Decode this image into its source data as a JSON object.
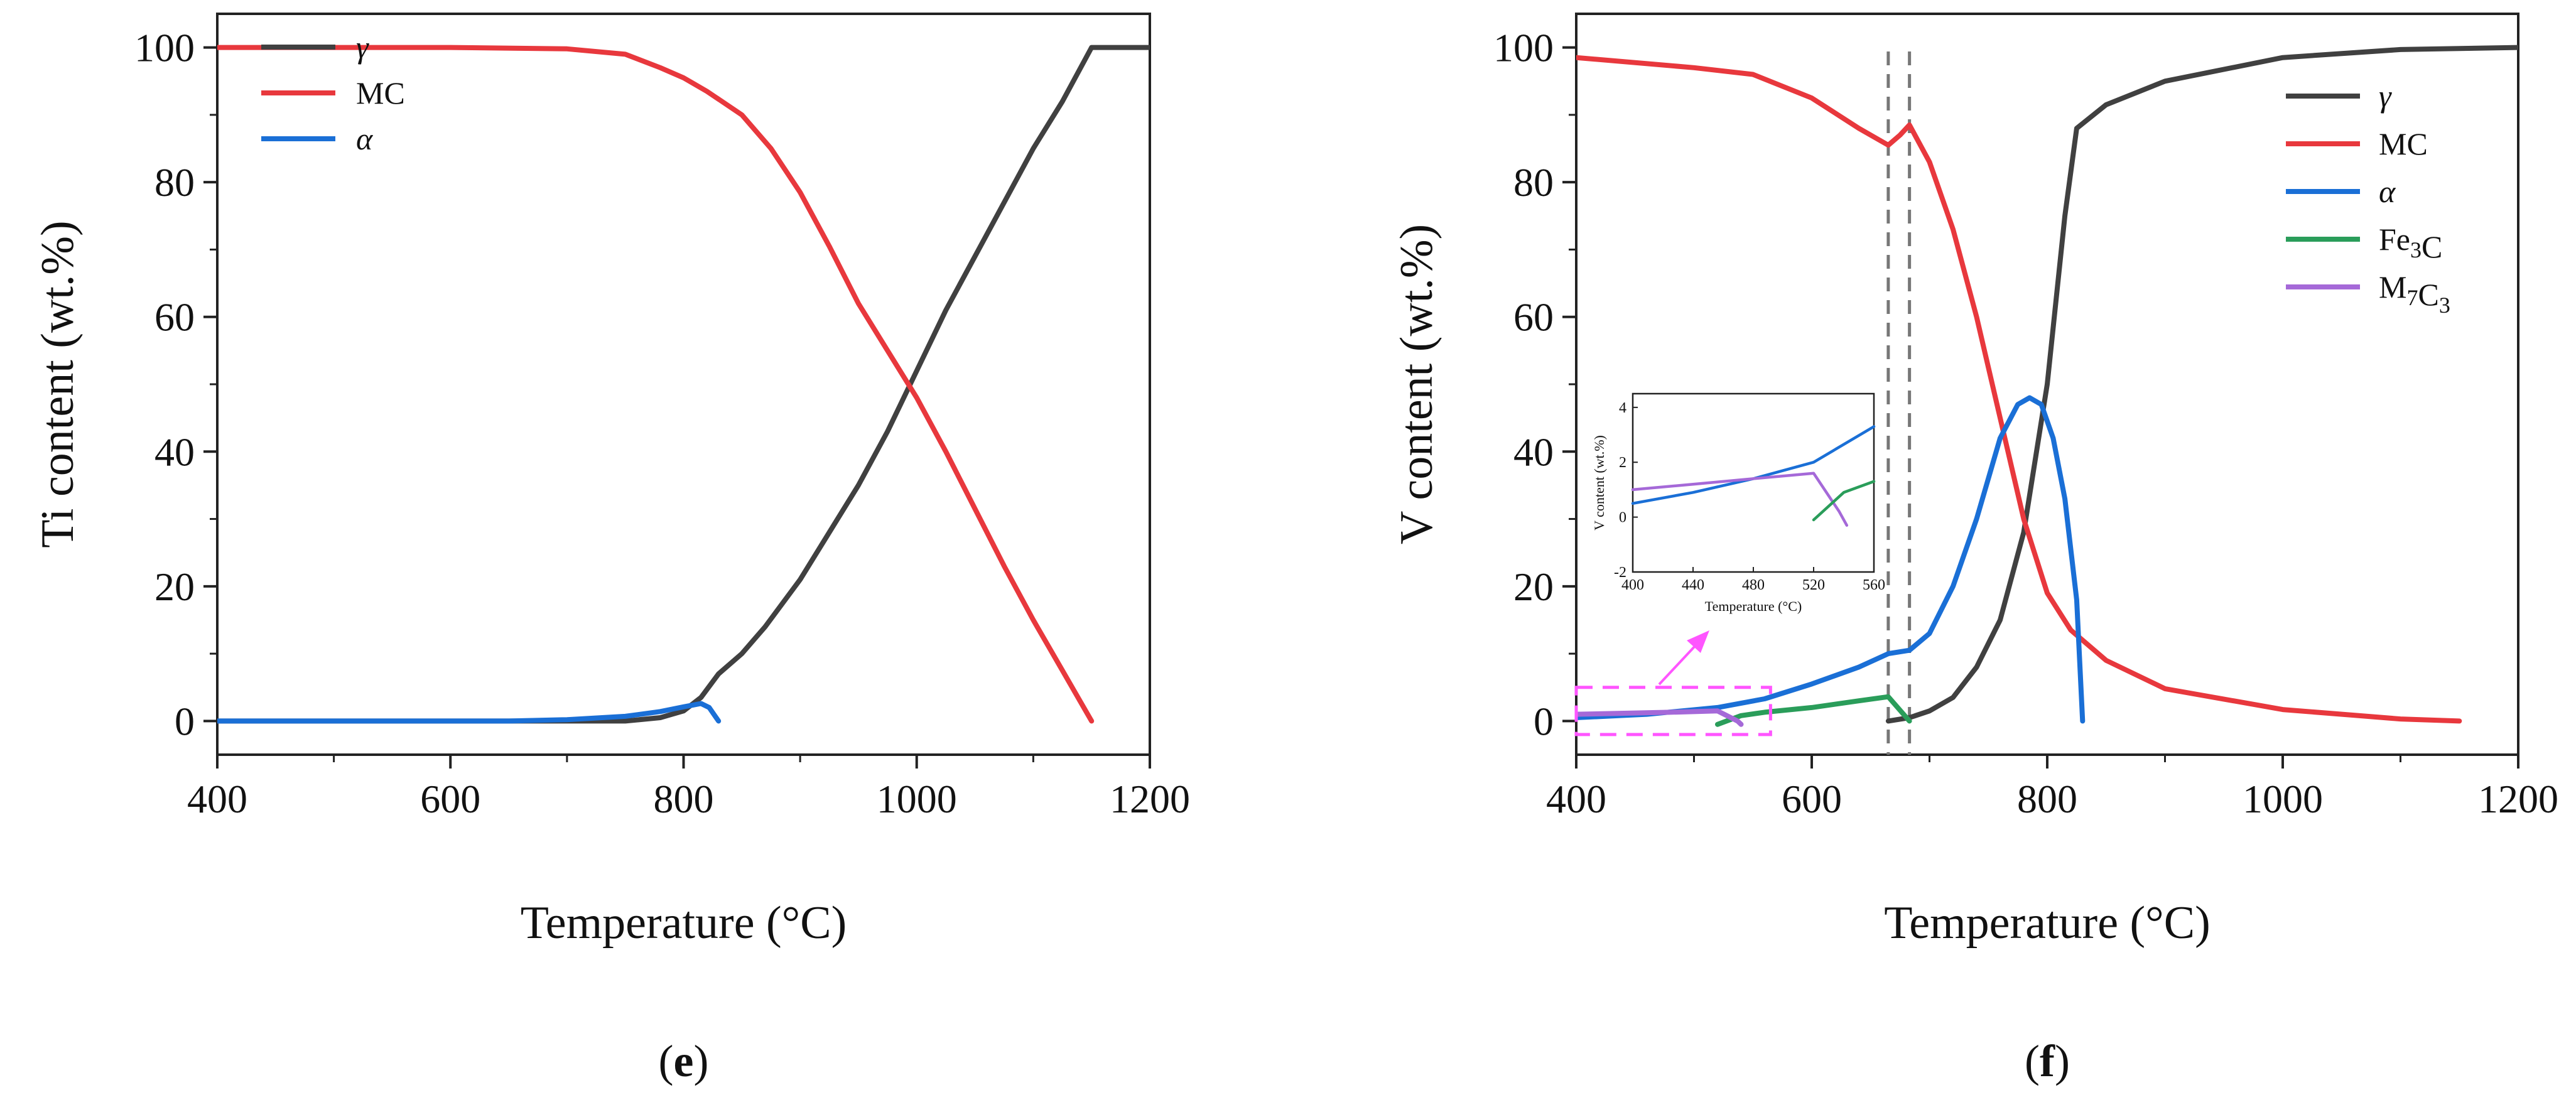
{
  "chart_data": [
    {
      "panel": "(e)",
      "panel_letter": "e",
      "type": "line",
      "xlabel": "Temperature (°C)",
      "ylabel": "Ti content (wt.%)",
      "xlim": [
        400,
        1200
      ],
      "ylim": [
        -5,
        105
      ],
      "xticks": [
        400,
        600,
        800,
        1000,
        1200
      ],
      "yticks": [
        0,
        20,
        40,
        60,
        80,
        100
      ],
      "legend_position": "top-left",
      "series": [
        {
          "name": "γ",
          "label_italic": true,
          "color": "#404040",
          "points": [
            [
              400,
              0
            ],
            [
              600,
              0
            ],
            [
              700,
              0
            ],
            [
              750,
              0
            ],
            [
              780,
              0.5
            ],
            [
              800,
              1.5
            ],
            [
              815,
              3.5
            ],
            [
              830,
              7
            ],
            [
              850,
              10
            ],
            [
              870,
              14
            ],
            [
              900,
              21
            ],
            [
              925,
              28
            ],
            [
              950,
              35
            ],
            [
              975,
              43
            ],
            [
              1000,
              52
            ],
            [
              1025,
              61
            ],
            [
              1050,
              69
            ],
            [
              1075,
              77
            ],
            [
              1100,
              85
            ],
            [
              1125,
              92
            ],
            [
              1150,
              100
            ],
            [
              1200,
              100
            ]
          ]
        },
        {
          "name": "MC",
          "label_italic": false,
          "color": "#e8383d",
          "points": [
            [
              400,
              100
            ],
            [
              600,
              100
            ],
            [
              700,
              99.8
            ],
            [
              750,
              99
            ],
            [
              780,
              97
            ],
            [
              800,
              95.5
            ],
            [
              820,
              93.5
            ],
            [
              850,
              90
            ],
            [
              875,
              85
            ],
            [
              900,
              78.5
            ],
            [
              925,
              70.5
            ],
            [
              950,
              62
            ],
            [
              975,
              55
            ],
            [
              1000,
              48
            ],
            [
              1025,
              40
            ],
            [
              1050,
              31.5
            ],
            [
              1075,
              23
            ],
            [
              1100,
              15
            ],
            [
              1125,
              7.5
            ],
            [
              1150,
              0
            ]
          ]
        },
        {
          "name": "α",
          "label_italic": true,
          "color": "#1a6fd6",
          "points": [
            [
              400,
              0
            ],
            [
              650,
              0
            ],
            [
              700,
              0.2
            ],
            [
              750,
              0.7
            ],
            [
              780,
              1.4
            ],
            [
              800,
              2.1
            ],
            [
              815,
              2.6
            ],
            [
              822,
              2
            ],
            [
              830,
              0
            ]
          ]
        }
      ]
    },
    {
      "panel": "(f)",
      "panel_letter": "f",
      "type": "line",
      "xlabel": "Temperature (°C)",
      "ylabel": "V content (wt.%)",
      "xlim": [
        400,
        1200
      ],
      "ylim": [
        -5,
        105
      ],
      "xticks": [
        400,
        600,
        800,
        1000,
        1200
      ],
      "yticks": [
        0,
        20,
        40,
        60,
        80,
        100
      ],
      "legend_position": "top-right",
      "vertical_reference_lines": [
        665,
        683
      ],
      "highlight_box": {
        "x": [
          400,
          565
        ],
        "y": [
          -2,
          5
        ]
      },
      "series": [
        {
          "name": "γ",
          "label_italic": true,
          "color": "#404040",
          "points": [
            [
              665,
              0
            ],
            [
              683,
              0.5
            ],
            [
              700,
              1.5
            ],
            [
              720,
              3.5
            ],
            [
              740,
              8
            ],
            [
              760,
              15
            ],
            [
              780,
              28
            ],
            [
              800,
              50
            ],
            [
              815,
              75
            ],
            [
              825,
              88
            ],
            [
              850,
              91.5
            ],
            [
              900,
              95
            ],
            [
              1000,
              98.5
            ],
            [
              1100,
              99.7
            ],
            [
              1200,
              100
            ]
          ]
        },
        {
          "name": "MC",
          "label_italic": false,
          "color": "#e8383d",
          "points": [
            [
              400,
              98.5
            ],
            [
              500,
              97
            ],
            [
              550,
              96
            ],
            [
              600,
              92.5
            ],
            [
              640,
              88
            ],
            [
              665,
              85.5
            ],
            [
              675,
              87
            ],
            [
              683,
              88.5
            ],
            [
              700,
              83
            ],
            [
              720,
              73
            ],
            [
              740,
              60
            ],
            [
              760,
              45
            ],
            [
              780,
              30
            ],
            [
              800,
              19
            ],
            [
              820,
              13.5
            ],
            [
              850,
              9
            ],
            [
              900,
              4.8
            ],
            [
              1000,
              1.7
            ],
            [
              1100,
              0.3
            ],
            [
              1150,
              0
            ]
          ]
        },
        {
          "name": "α",
          "label_italic": true,
          "color": "#1a6fd6",
          "points": [
            [
              400,
              0.5
            ],
            [
              460,
              1
            ],
            [
              520,
              2
            ],
            [
              560,
              3.3
            ],
            [
              600,
              5.5
            ],
            [
              640,
              8
            ],
            [
              665,
              10
            ],
            [
              683,
              10.5
            ],
            [
              700,
              13
            ],
            [
              720,
              20
            ],
            [
              740,
              30
            ],
            [
              760,
              42
            ],
            [
              775,
              47
            ],
            [
              785,
              48
            ],
            [
              795,
              47
            ],
            [
              805,
              42
            ],
            [
              815,
              33
            ],
            [
              825,
              18
            ],
            [
              830,
              0
            ]
          ]
        },
        {
          "name": "Fe3C",
          "label_italic": false,
          "color": "#2a9d5a",
          "points": [
            [
              520,
              -0.5
            ],
            [
              540,
              0.8
            ],
            [
              560,
              1.3
            ],
            [
              600,
              2
            ],
            [
              640,
              3
            ],
            [
              665,
              3.6
            ],
            [
              683,
              0
            ]
          ]
        },
        {
          "name": "M7C3",
          "label_italic": false,
          "color": "#a569d8",
          "points": [
            [
              400,
              1
            ],
            [
              480,
              1.3
            ],
            [
              520,
              1.5
            ],
            [
              537,
              0
            ],
            [
              540,
              -0.5
            ]
          ]
        }
      ],
      "inset": {
        "type": "line",
        "xlabel": "Temperature (°C)",
        "ylabel": "V content (wt.%)",
        "xlim": [
          400,
          560
        ],
        "ylim": [
          -2,
          4.5
        ],
        "xticks": [
          400,
          440,
          480,
          520,
          560
        ],
        "yticks": [
          -2,
          0,
          2,
          4
        ],
        "series": [
          {
            "name": "α",
            "color": "#1a6fd6",
            "points": [
              [
                400,
                0.5
              ],
              [
                440,
                0.9
              ],
              [
                480,
                1.4
              ],
              [
                520,
                2
              ],
              [
                560,
                3.3
              ]
            ]
          },
          {
            "name": "M7C3",
            "color": "#a569d8",
            "points": [
              [
                400,
                1
              ],
              [
                440,
                1.2
              ],
              [
                480,
                1.4
              ],
              [
                520,
                1.6
              ],
              [
                537,
                0.2
              ],
              [
                542,
                -0.3
              ]
            ]
          },
          {
            "name": "Fe3C",
            "color": "#2a9d5a",
            "points": [
              [
                520,
                -0.1
              ],
              [
                540,
                0.9
              ],
              [
                560,
                1.3
              ]
            ]
          }
        ]
      }
    }
  ]
}
